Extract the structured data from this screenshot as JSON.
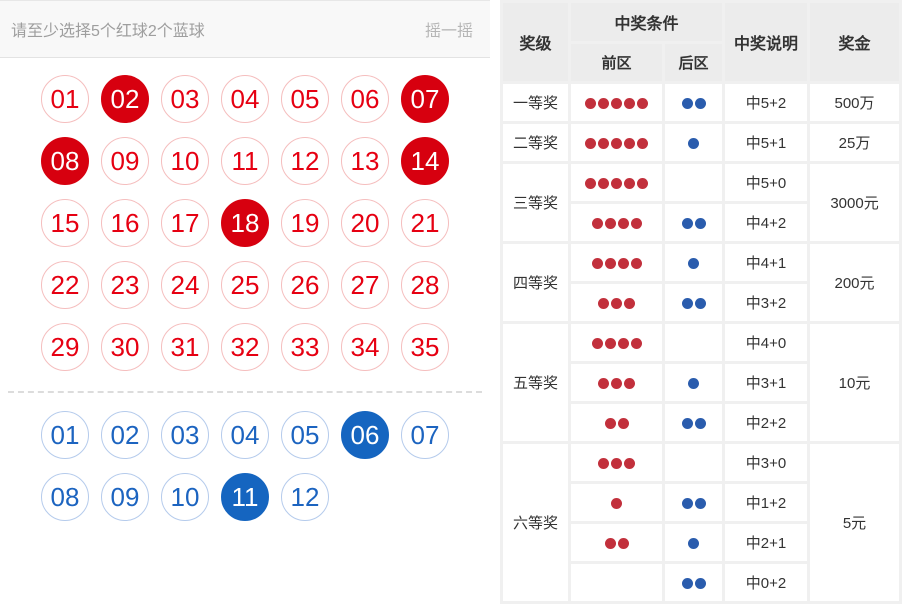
{
  "left": {
    "hint": "请至少选择5个红球2个蓝球",
    "shake_label": "摇一摇",
    "red_area": {
      "balls": [
        "01",
        "02",
        "03",
        "04",
        "05",
        "06",
        "07",
        "08",
        "09",
        "10",
        "11",
        "12",
        "13",
        "14",
        "15",
        "16",
        "17",
        "18",
        "19",
        "20",
        "21",
        "22",
        "23",
        "24",
        "25",
        "26",
        "27",
        "28",
        "29",
        "30",
        "31",
        "32",
        "33",
        "34",
        "35"
      ],
      "selected": [
        "02",
        "07",
        "08",
        "14",
        "18"
      ]
    },
    "blue_area": {
      "balls": [
        "01",
        "02",
        "03",
        "04",
        "05",
        "06",
        "07",
        "08",
        "09",
        "10",
        "11",
        "12"
      ],
      "selected": [
        "06",
        "11"
      ]
    }
  },
  "prize_table": {
    "headers": {
      "level": "奖级",
      "condition": "中奖条件",
      "front": "前区",
      "back": "后区",
      "desc": "中奖说明",
      "prize": "奖金"
    },
    "groups": [
      {
        "level": "一等奖",
        "prize": "500万",
        "rows": [
          {
            "front": 5,
            "back": 2,
            "desc": "中5+2"
          }
        ]
      },
      {
        "level": "二等奖",
        "prize": "25万",
        "rows": [
          {
            "front": 5,
            "back": 1,
            "desc": "中5+1"
          }
        ]
      },
      {
        "level": "三等奖",
        "prize": "3000元",
        "rows": [
          {
            "front": 5,
            "back": 0,
            "desc": "中5+0"
          },
          {
            "front": 4,
            "back": 2,
            "desc": "中4+2"
          }
        ]
      },
      {
        "level": "四等奖",
        "prize": "200元",
        "rows": [
          {
            "front": 4,
            "back": 1,
            "desc": "中4+1"
          },
          {
            "front": 3,
            "back": 2,
            "desc": "中3+2"
          }
        ]
      },
      {
        "level": "五等奖",
        "prize": "10元",
        "rows": [
          {
            "front": 4,
            "back": 0,
            "desc": "中4+0"
          },
          {
            "front": 3,
            "back": 1,
            "desc": "中3+1"
          },
          {
            "front": 2,
            "back": 2,
            "desc": "中2+2"
          }
        ]
      },
      {
        "level": "六等奖",
        "prize": "5元",
        "rows": [
          {
            "front": 3,
            "back": 0,
            "desc": "中3+0"
          },
          {
            "front": 1,
            "back": 2,
            "desc": "中1+2"
          },
          {
            "front": 2,
            "back": 1,
            "desc": "中2+1"
          },
          {
            "front": 0,
            "back": 2,
            "desc": "中0+2"
          }
        ]
      }
    ]
  },
  "colors": {
    "red_ball_selected": "#d7000f",
    "red_ball_text": "#e60012",
    "red_ball_border": "#f5bebe",
    "blue_ball_selected": "#1565c0",
    "blue_ball_text": "#1c64c0",
    "blue_ball_border": "#b5cbec",
    "table_dot_red": "#c2303c",
    "table_dot_blue": "#2a5cad",
    "table_header_bg": "#ececec",
    "table_grid": "#f0f0f0",
    "text": "#333333"
  }
}
